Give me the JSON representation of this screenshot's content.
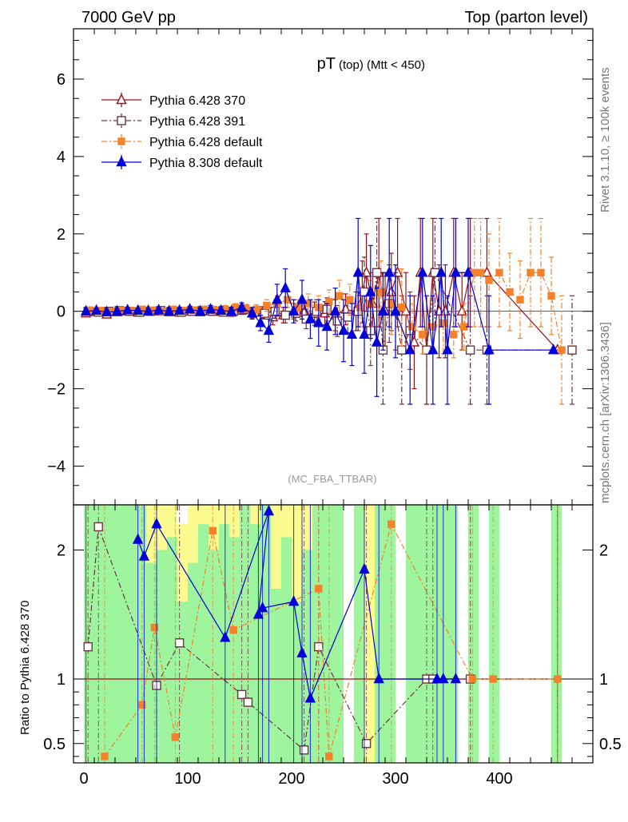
{
  "header": {
    "left": "7000 GeV pp",
    "right": "Top (parton level)"
  },
  "side_labels": {
    "rivet": "Rivet 3.1.10, ≥ 100k events",
    "mcplots": "mcplots.cern.ch [arXiv:1306.3436]"
  },
  "colors": {
    "p370": "#9b0f18",
    "p391": "#6b3344",
    "p6def": "#f5822a",
    "p8def": "#0000d9",
    "band_inner": "#9ef59e",
    "band_outer": "#fbfb8f"
  },
  "chart_data": [
    {
      "type": "scatter",
      "title_main": "pT",
      "title_sub": "(top) (Mtt < 450)",
      "watermark": "(MC_FBA_TTBAR)",
      "xlabel": "",
      "ylabel": "",
      "xlim": [
        -10,
        490
      ],
      "ylim": [
        -5,
        7.3
      ],
      "yticks": [
        -4,
        -2,
        0,
        2,
        4,
        6
      ],
      "ytick_labels": [
        "−4",
        "−2",
        "0",
        "2",
        "4",
        "6"
      ],
      "legend_position": "top-left",
      "series": [
        {
          "name": "Pythia 6.428 370",
          "color_key": "p370",
          "marker": "triangle-open",
          "line": "solid",
          "x": [
            2,
            12,
            22,
            32,
            42,
            52,
            62,
            72,
            82,
            92,
            102,
            112,
            122,
            132,
            142,
            152,
            162,
            172,
            182,
            192,
            202,
            212,
            222,
            232,
            242,
            252,
            262,
            268,
            272,
            278,
            284,
            290,
            296,
            302,
            310,
            318,
            324,
            330,
            336,
            342,
            348,
            356,
            364,
            372,
            388,
            456
          ],
          "y": [
            -0.05,
            -0.02,
            -0.08,
            -0.02,
            0.0,
            -0.03,
            0.02,
            0.0,
            -0.02,
            -0.03,
            0.0,
            -0.02,
            0.0,
            -0.01,
            -0.03,
            0.02,
            -0.05,
            -0.03,
            -0.15,
            -0.1,
            0.0,
            -0.03,
            -0.06,
            -0.05,
            -0.1,
            0.05,
            0.0,
            0.5,
            1.0,
            0.2,
            1.0,
            0.0,
            0.5,
            1.0,
            0.0,
            -0.8,
            1.0,
            -1.0,
            1.0,
            0.0,
            0.0,
            1.0,
            0.0,
            1.0,
            1.0,
            -1.0
          ],
          "err": [
            0.05,
            0.05,
            0.05,
            0.06,
            0.06,
            0.06,
            0.06,
            0.06,
            0.07,
            0.08,
            0.08,
            0.08,
            0.1,
            0.1,
            0.1,
            0.1,
            0.12,
            0.15,
            0.2,
            0.2,
            0.2,
            0.25,
            0.3,
            0.3,
            0.4,
            0.4,
            0.5,
            0.8,
            1.0,
            0.8,
            1.4,
            1.0,
            1.0,
            1.4,
            1.0,
            1.2,
            1.4,
            1.4,
            1.4,
            1.2,
            1.2,
            1.4,
            1.0,
            1.4,
            1.4,
            0.0
          ]
        },
        {
          "name": "Pythia 6.428 391",
          "color_key": "p391",
          "marker": "square-open",
          "line": "dashdot",
          "x": [
            4,
            14,
            24,
            34,
            44,
            54,
            64,
            74,
            84,
            94,
            104,
            114,
            124,
            134,
            144,
            154,
            164,
            174,
            184,
            194,
            204,
            214,
            224,
            234,
            244,
            254,
            264,
            270,
            276,
            282,
            288,
            294,
            300,
            306,
            314,
            330,
            338,
            372,
            388,
            470
          ],
          "y": [
            0.0,
            -0.02,
            0.0,
            0.02,
            0.0,
            -0.02,
            0.0,
            0.02,
            0.0,
            -0.02,
            0.0,
            0.02,
            0.0,
            -0.02,
            0.0,
            0.05,
            -0.02,
            -0.05,
            0.0,
            -0.1,
            -0.05,
            -0.2,
            0.0,
            0.05,
            -0.25,
            -0.15,
            0.0,
            0.5,
            -0.5,
            1.0,
            -1.0,
            0.2,
            0.0,
            -1.0,
            -0.5,
            -1.0,
            1.0,
            -1.0,
            -1.0,
            -1.0
          ],
          "err": [
            0.05,
            0.05,
            0.05,
            0.06,
            0.06,
            0.06,
            0.06,
            0.07,
            0.07,
            0.08,
            0.08,
            0.08,
            0.1,
            0.1,
            0.1,
            0.12,
            0.12,
            0.15,
            0.18,
            0.2,
            0.2,
            0.25,
            0.3,
            0.3,
            0.4,
            0.4,
            0.5,
            0.9,
            0.9,
            1.4,
            1.4,
            1.0,
            1.0,
            1.4,
            1.0,
            1.4,
            1.4,
            1.4,
            1.4,
            1.4
          ]
        },
        {
          "name": "Pythia 6.428 default",
          "color_key": "p6def",
          "marker": "square-filled",
          "line": "dashdot",
          "x": [
            6,
            16,
            26,
            36,
            46,
            56,
            66,
            76,
            86,
            96,
            106,
            116,
            126,
            136,
            146,
            156,
            166,
            176,
            186,
            196,
            206,
            216,
            226,
            236,
            246,
            256,
            266,
            276,
            286,
            296,
            306,
            316,
            326,
            336,
            346,
            356,
            366,
            376,
            382,
            390,
            400,
            410,
            420,
            430,
            440,
            450,
            460
          ],
          "y": [
            0.03,
            0.02,
            0.0,
            0.03,
            0.02,
            0.05,
            0.03,
            0.0,
            0.05,
            0.02,
            0.03,
            0.05,
            0.03,
            0.05,
            0.1,
            0.08,
            0.05,
            0.15,
            0.2,
            0.3,
            0.1,
            0.2,
            0.1,
            0.25,
            0.4,
            0.3,
            0.1,
            0.2,
            0.5,
            0.2,
            0.1,
            -0.4,
            -0.6,
            -0.4,
            -0.3,
            -0.6,
            -0.4,
            1.0,
            1.0,
            0.8,
            1.0,
            0.5,
            0.3,
            1.0,
            1.0,
            0.4,
            -1.0
          ],
          "err": [
            0.05,
            0.05,
            0.05,
            0.05,
            0.06,
            0.06,
            0.06,
            0.06,
            0.07,
            0.08,
            0.08,
            0.08,
            0.1,
            0.1,
            0.1,
            0.1,
            0.12,
            0.15,
            0.2,
            0.2,
            0.2,
            0.25,
            0.3,
            0.3,
            0.4,
            0.4,
            0.5,
            0.6,
            0.8,
            0.8,
            1.0,
            0.6,
            0.5,
            0.6,
            0.8,
            0.6,
            0.6,
            1.4,
            1.4,
            1.2,
            1.4,
            1.0,
            1.0,
            1.4,
            1.4,
            1.0,
            1.4
          ]
        },
        {
          "name": "Pythia 8.308 default",
          "color_key": "p8def",
          "marker": "triangle-filled",
          "line": "solid",
          "x": [
            2,
            12,
            22,
            32,
            42,
            52,
            62,
            72,
            82,
            92,
            102,
            112,
            122,
            132,
            142,
            152,
            162,
            170,
            178,
            186,
            194,
            202,
            210,
            218,
            226,
            234,
            242,
            250,
            258,
            264,
            270,
            276,
            282,
            288,
            294,
            300,
            314,
            326,
            336,
            344,
            350,
            358,
            370,
            390,
            452
          ],
          "y": [
            0.0,
            0.02,
            -0.02,
            0.0,
            0.03,
            0.02,
            0.0,
            0.03,
            0.0,
            0.02,
            0.05,
            0.0,
            0.05,
            0.02,
            0.0,
            0.1,
            -0.05,
            -0.3,
            -0.5,
            0.3,
            0.6,
            0.0,
            0.3,
            -0.2,
            -0.3,
            -0.4,
            0.0,
            -0.5,
            -0.6,
            1.0,
            -0.6,
            0.5,
            -0.8,
            0.0,
            1.0,
            0.0,
            -1.0,
            1.0,
            -1.0,
            1.0,
            -1.0,
            1.0,
            1.0,
            -1.0,
            -1.0
          ],
          "err": [
            0.05,
            0.05,
            0.05,
            0.05,
            0.06,
            0.06,
            0.06,
            0.06,
            0.07,
            0.08,
            0.08,
            0.08,
            0.1,
            0.1,
            0.1,
            0.12,
            0.15,
            0.2,
            0.3,
            0.4,
            0.5,
            0.3,
            0.5,
            0.5,
            0.6,
            0.6,
            0.6,
            0.8,
            0.8,
            1.4,
            1.0,
            1.2,
            1.4,
            1.0,
            1.4,
            1.2,
            1.4,
            1.4,
            1.4,
            1.4,
            1.4,
            1.4,
            1.4,
            1.4,
            0.0
          ]
        }
      ]
    },
    {
      "type": "scatter",
      "title": "",
      "xlabel": "",
      "ylabel": "Ratio to Pythia 6.428 370",
      "xlim": [
        -10,
        490
      ],
      "ylim": [
        0.35,
        2.35
      ],
      "yticks": [
        0.5,
        1,
        2
      ],
      "ytick_labels": [
        "0.5",
        "1",
        "2"
      ],
      "xticks": [
        0,
        100,
        200,
        300,
        400
      ],
      "xtick_labels": [
        "0",
        "100",
        "200",
        "300",
        "400"
      ],
      "reference_line": 1,
      "band": {
        "x_edges": [
          0,
          10,
          20,
          30,
          40,
          50,
          60,
          70,
          80,
          90,
          100,
          110,
          120,
          130,
          140,
          150,
          160,
          170,
          180,
          190,
          200,
          210,
          220,
          230,
          240,
          250,
          260,
          270,
          280,
          290,
          300,
          310,
          320,
          330,
          340,
          350,
          360,
          370,
          380,
          390,
          400,
          410,
          420,
          430,
          440,
          450,
          460,
          470
        ],
        "inner_top": [
          2.35,
          2.35,
          2.35,
          2.35,
          2.35,
          2.35,
          1.9,
          2.0,
          2.1,
          1.6,
          1.9,
          2.2,
          2.0,
          2.2,
          2.1,
          2.35,
          2.2,
          2.35,
          1.7,
          2.1,
          1.6,
          2.0,
          2.35,
          2.35,
          2.35,
          0,
          2.35,
          0,
          2.35,
          2.35,
          0,
          2.35,
          2.35,
          2.35,
          2.35,
          2.35,
          0,
          2.35,
          0,
          2.35,
          0,
          0,
          0,
          0,
          0,
          2.35,
          0
        ],
        "outer_top": [
          2.35,
          2.35,
          2.35,
          2.35,
          2.35,
          2.35,
          2.35,
          2.35,
          2.35,
          2.2,
          2.35,
          2.35,
          2.35,
          2.35,
          2.35,
          2.35,
          2.35,
          2.35,
          2.35,
          2.35,
          2.35,
          2.35,
          2.35,
          2.35,
          2.35,
          0,
          2.35,
          2.35,
          2.35,
          2.35,
          0,
          2.35,
          2.35,
          2.35,
          2.35,
          2.35,
          0,
          2.35,
          0,
          2.35,
          0,
          0,
          0,
          0,
          0,
          2.35,
          0
        ]
      },
      "series": [
        {
          "name": "Pythia 6.428 370",
          "color_key": "p370",
          "x": [
            2,
            456
          ],
          "y": [
            1,
            1
          ]
        },
        {
          "name": "Pythia 6.428 391",
          "color_key": "p391",
          "x": [
            4,
            14,
            70,
            92,
            152,
            158,
            212,
            226,
            272,
            330,
            336,
            372
          ],
          "y": [
            1.25,
            2.18,
            0.95,
            1.28,
            0.88,
            0.82,
            0.45,
            1.25,
            0.5,
            1.0,
            1.0,
            1.0
          ]
        },
        {
          "name": "Pythia 6.428 default",
          "color_key": "p6def",
          "x": [
            20,
            56,
            68,
            88,
            124,
            144,
            226,
            236,
            296,
            374,
            394,
            456
          ],
          "y": [
            0.4,
            0.8,
            1.4,
            0.55,
            2.15,
            1.38,
            1.7,
            0.4,
            2.2,
            1.0,
            1.0,
            1.0
          ]
        },
        {
          "name": "Pythia 8.308 default",
          "color_key": "p8def",
          "x": [
            52,
            58,
            70,
            136,
            178,
            168,
            172,
            202,
            210,
            218,
            270,
            284,
            340,
            346,
            358
          ],
          "y": [
            2.08,
            1.95,
            2.2,
            1.32,
            2.3,
            1.5,
            1.55,
            1.6,
            1.2,
            0.85,
            1.85,
            1.0,
            1.0,
            1.0,
            1.0
          ]
        }
      ]
    }
  ]
}
